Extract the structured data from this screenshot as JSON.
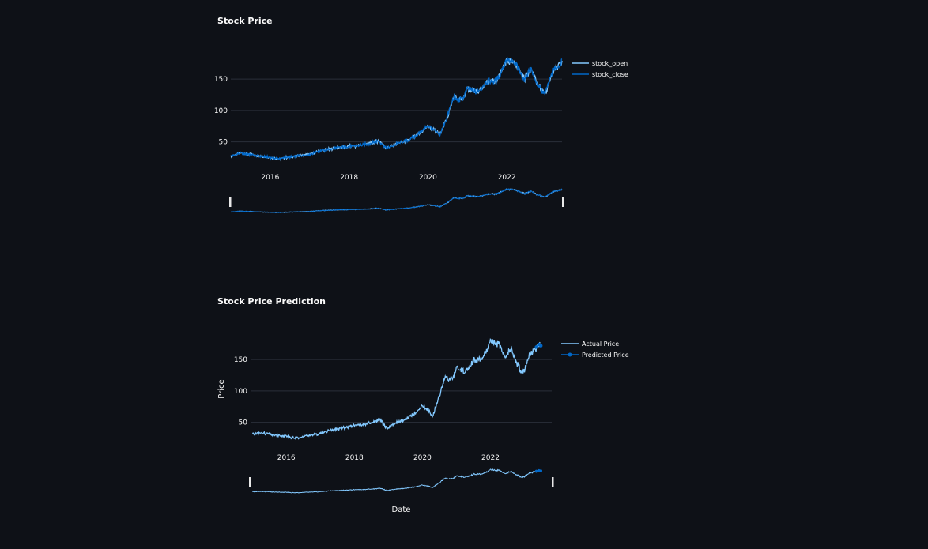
{
  "colors": {
    "background": "#0e1117",
    "grid": "#2a2f3a",
    "tick_text": "#fafafa",
    "stock_open": "#83c9ff",
    "stock_close": "#0068c9",
    "actual_price": "#83c9ff",
    "predicted_price": "#0068c9",
    "range_handle": "#e8e8e8"
  },
  "chart_data": [
    {
      "type": "line",
      "title": "Stock Price",
      "xlabel": "",
      "ylabel": "",
      "xlim": [
        2015.0,
        2023.4
      ],
      "ylim": [
        18,
        188
      ],
      "x_ticks": [
        2016,
        2018,
        2020,
        2022
      ],
      "x_tick_labels": [
        "2016",
        "2018",
        "2020",
        "2022"
      ],
      "y_ticks": [
        50,
        100,
        150
      ],
      "y_tick_labels": [
        "50",
        "100",
        "150"
      ],
      "grid": true,
      "legend": "top-right",
      "range_slider": true,
      "series": [
        {
          "name": "stock_open",
          "x": [
            2015.0,
            2015.25,
            2015.5,
            2015.75,
            2016.0,
            2016.25,
            2016.5,
            2016.75,
            2017.0,
            2017.25,
            2017.5,
            2017.75,
            2018.0,
            2018.25,
            2018.5,
            2018.75,
            2018.95,
            2019.25,
            2019.5,
            2019.75,
            2020.0,
            2020.17,
            2020.3,
            2020.5,
            2020.67,
            2020.75,
            2020.9,
            2021.0,
            2021.25,
            2021.5,
            2021.75,
            2022.0,
            2022.25,
            2022.45,
            2022.6,
            2022.75,
            2022.92,
            2023.0,
            2023.15,
            2023.4
          ],
          "values": [
            27,
            32,
            30,
            27,
            25,
            23,
            26,
            28,
            30,
            36,
            38,
            41,
            43,
            44,
            47,
            52,
            40,
            48,
            52,
            62,
            75,
            68,
            62,
            90,
            125,
            117,
            120,
            135,
            128,
            145,
            147,
            180,
            172,
            150,
            168,
            145,
            130,
            130,
            160,
            176
          ]
        },
        {
          "name": "stock_close",
          "x": [
            2015.0,
            2015.25,
            2015.5,
            2015.75,
            2016.0,
            2016.25,
            2016.5,
            2016.75,
            2017.0,
            2017.25,
            2017.5,
            2017.75,
            2018.0,
            2018.25,
            2018.5,
            2018.75,
            2018.95,
            2019.25,
            2019.5,
            2019.75,
            2020.0,
            2020.17,
            2020.3,
            2020.5,
            2020.67,
            2020.75,
            2020.9,
            2021.0,
            2021.25,
            2021.5,
            2021.75,
            2022.0,
            2022.25,
            2022.45,
            2022.6,
            2022.75,
            2022.92,
            2023.0,
            2023.15,
            2023.4
          ],
          "values": [
            27,
            32,
            30,
            27,
            25,
            23,
            26,
            28,
            30,
            36,
            38,
            41,
            43,
            44,
            47,
            52,
            39,
            48,
            52,
            62,
            76,
            67,
            61,
            92,
            124,
            116,
            121,
            134,
            129,
            146,
            148,
            181,
            171,
            149,
            169,
            144,
            129,
            131,
            161,
            177
          ]
        }
      ]
    },
    {
      "type": "line",
      "title": "Stock Price Prediction",
      "xlabel": "Date",
      "ylabel": "Price",
      "xlim": [
        2014.95,
        2023.8
      ],
      "ylim": [
        18,
        188
      ],
      "x_ticks": [
        2016,
        2018,
        2020,
        2022
      ],
      "x_tick_labels": [
        "2016",
        "2018",
        "2020",
        "2022"
      ],
      "y_ticks": [
        50,
        100,
        150
      ],
      "y_tick_labels": [
        "50",
        "100",
        "150"
      ],
      "grid": true,
      "legend": "top-right",
      "range_slider": true,
      "series": [
        {
          "name": "Actual Price",
          "x": [
            2015.0,
            2015.25,
            2015.5,
            2015.75,
            2016.0,
            2016.25,
            2016.5,
            2016.75,
            2017.0,
            2017.25,
            2017.5,
            2017.75,
            2018.0,
            2018.25,
            2018.5,
            2018.75,
            2018.95,
            2019.25,
            2019.5,
            2019.75,
            2020.0,
            2020.17,
            2020.3,
            2020.5,
            2020.67,
            2020.75,
            2020.9,
            2021.0,
            2021.25,
            2021.5,
            2021.75,
            2022.0,
            2022.25,
            2022.45,
            2022.6,
            2022.75,
            2022.92,
            2023.0,
            2023.15,
            2023.35,
            2023.45
          ],
          "values": [
            31,
            33,
            31,
            29,
            27,
            25,
            27,
            30,
            32,
            37,
            39,
            42,
            45,
            46,
            49,
            55,
            40,
            50,
            54,
            63,
            77,
            70,
            60,
            92,
            125,
            118,
            121,
            138,
            130,
            148,
            150,
            179,
            175,
            152,
            168,
            146,
            130,
            133,
            158,
            168,
            174
          ]
        },
        {
          "name": "Predicted Price",
          "x": [
            2023.35,
            2023.42,
            2023.48
          ],
          "values": [
            170,
            174,
            172
          ]
        }
      ]
    }
  ]
}
